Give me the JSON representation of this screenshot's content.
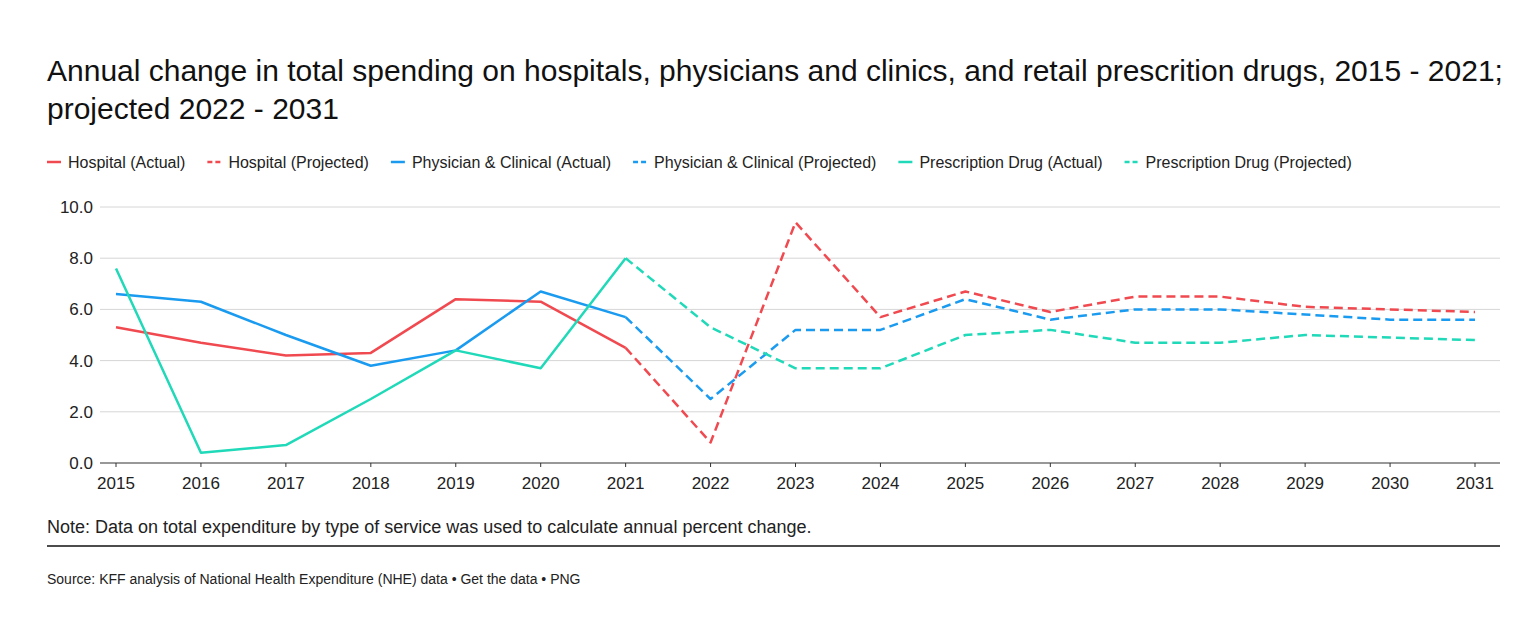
{
  "chart_data": {
    "type": "line",
    "title": "Annual change in total spending on hospitals, physicians and clinics, and retail prescrition drugs, 2015 - 2021; projected 2022 - 2031",
    "note": "Note: Data on total expenditure by type of service was used to calculate annual percent change.",
    "source": "Source: KFF analysis of National Health Expenditure (NHE) data • Get the data • PNG",
    "x": [
      2015,
      2016,
      2017,
      2018,
      2019,
      2020,
      2021,
      2022,
      2023,
      2024,
      2025,
      2026,
      2027,
      2028,
      2029,
      2030,
      2031
    ],
    "xlim": [
      2015,
      2031
    ],
    "xticks": [
      2015,
      2016,
      2017,
      2018,
      2019,
      2020,
      2021,
      2022,
      2023,
      2024,
      2025,
      2026,
      2027,
      2028,
      2029,
      2030,
      2031
    ],
    "ylim": [
      0,
      10
    ],
    "yticks": [
      {
        "value": 0,
        "label": "0.0"
      },
      {
        "value": 2,
        "label": "2.0"
      },
      {
        "value": 4,
        "label": "4.0"
      },
      {
        "value": 6,
        "label": "6.0"
      },
      {
        "value": 8,
        "label": "8.0"
      },
      {
        "value": 10,
        "label": "10.0"
      }
    ],
    "grid": true,
    "legend": "top",
    "series": [
      {
        "name": "Hospital (Actual)",
        "color": "#f04a50",
        "line_style": "solid",
        "values": [
          5.3,
          4.7,
          4.2,
          4.3,
          6.4,
          6.3,
          4.5,
          null,
          null,
          null,
          null,
          null,
          null,
          null,
          null,
          null,
          null
        ]
      },
      {
        "name": "Hospital (Projected)",
        "color": "#f04a50",
        "line_style": "dashed",
        "values": [
          null,
          null,
          null,
          null,
          null,
          null,
          4.5,
          0.8,
          9.4,
          5.7,
          6.7,
          5.9,
          6.5,
          6.5,
          6.1,
          6.0,
          5.9
        ]
      },
      {
        "name": "Physician & Clinical (Actual)",
        "color": "#1a9bf0",
        "line_style": "solid",
        "values": [
          6.6,
          6.3,
          5.0,
          3.8,
          4.4,
          6.7,
          5.7,
          null,
          null,
          null,
          null,
          null,
          null,
          null,
          null,
          null,
          null
        ]
      },
      {
        "name": "Physician & Clinical (Projected)",
        "color": "#1a9bf0",
        "line_style": "dashed",
        "values": [
          null,
          null,
          null,
          null,
          null,
          null,
          5.7,
          2.5,
          5.2,
          5.2,
          6.4,
          5.6,
          6.0,
          6.0,
          5.8,
          5.6,
          5.6
        ]
      },
      {
        "name": "Prescription Drug (Actual)",
        "color": "#1fd9b8",
        "line_style": "solid",
        "values": [
          7.6,
          0.4,
          0.7,
          2.5,
          4.4,
          3.7,
          8.0,
          null,
          null,
          null,
          null,
          null,
          null,
          null,
          null,
          null,
          null
        ]
      },
      {
        "name": "Prescription Drug (Projected)",
        "color": "#1fd9b8",
        "line_style": "dashed",
        "values": [
          null,
          null,
          null,
          null,
          null,
          null,
          8.0,
          5.3,
          3.7,
          3.7,
          5.0,
          5.2,
          4.7,
          4.7,
          5.0,
          4.9,
          4.8
        ]
      }
    ]
  }
}
